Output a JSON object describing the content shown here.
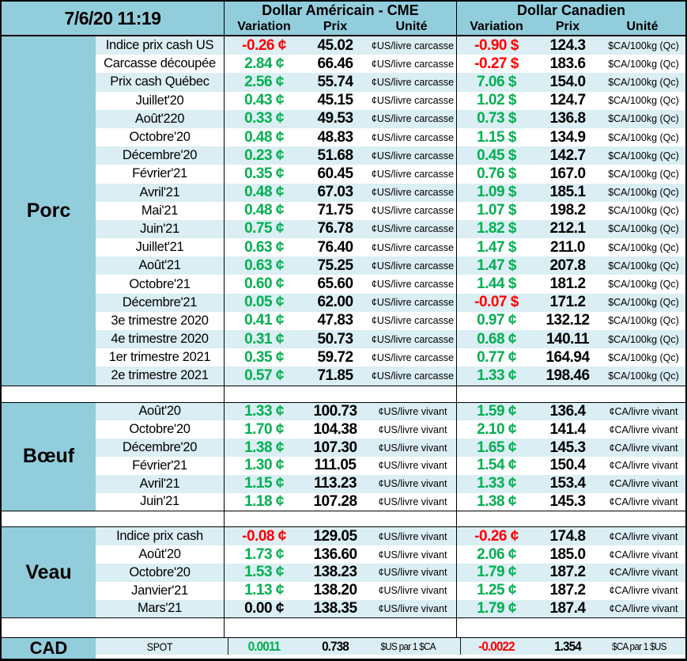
{
  "header": {
    "datetime": "7/6/20 11:19",
    "usd_title": "Dollar Américain - CME",
    "cad_title": "Dollar Canadien",
    "columns": [
      "Variation",
      "Prix",
      "Unité"
    ]
  },
  "colors": {
    "positive_green": "#00B050",
    "negative_red": "#FF0000",
    "header_blue": "#92CDDC",
    "row_alt_blue": "#DAEEF3"
  },
  "sections": [
    {
      "key": "porc",
      "name": "Porc",
      "rows": [
        {
          "label": "Indice prix cash US",
          "us_var": "-0.26 ¢",
          "us_color": "red",
          "us_prix": "45.02",
          "us_unit": "¢US/livre carcasse",
          "ca_var": "-0.90 $",
          "ca_color": "red",
          "ca_prix": "124.3",
          "ca_unit": "$CA/100kg (Qc)"
        },
        {
          "label": "Carcasse découpée",
          "us_var": "2.84 ¢",
          "us_color": "green",
          "us_prix": "66.46",
          "us_unit": "¢US/livre carcasse",
          "ca_var": "-0.27 $",
          "ca_color": "red",
          "ca_prix": "183.6",
          "ca_unit": "$CA/100kg (Qc)"
        },
        {
          "label": "Prix cash Québec",
          "us_var": "2.56 ¢",
          "us_color": "green",
          "us_prix": "55.74",
          "us_unit": "¢US/livre carcasse",
          "ca_var": "7.06 $",
          "ca_color": "green",
          "ca_prix": "154.0",
          "ca_unit": "$CA/100kg (Qc)"
        },
        {
          "label": "Juillet'20",
          "us_var": "0.43 ¢",
          "us_color": "green",
          "us_prix": "45.15",
          "us_unit": "¢US/livre carcasse",
          "ca_var": "1.02 $",
          "ca_color": "green",
          "ca_prix": "124.7",
          "ca_unit": "$CA/100kg (Qc)"
        },
        {
          "label": "Août'220",
          "us_var": "0.33 ¢",
          "us_color": "green",
          "us_prix": "49.53",
          "us_unit": "¢US/livre carcasse",
          "ca_var": "0.73 $",
          "ca_color": "green",
          "ca_prix": "136.8",
          "ca_unit": "$CA/100kg (Qc)"
        },
        {
          "label": "Octobre'20",
          "us_var": "0.48 ¢",
          "us_color": "green",
          "us_prix": "48.83",
          "us_unit": "¢US/livre carcasse",
          "ca_var": "1.15 $",
          "ca_color": "green",
          "ca_prix": "134.9",
          "ca_unit": "$CA/100kg (Qc)"
        },
        {
          "label": "Décembre'20",
          "us_var": "0.23 ¢",
          "us_color": "green",
          "us_prix": "51.68",
          "us_unit": "¢US/livre carcasse",
          "ca_var": "0.45 $",
          "ca_color": "green",
          "ca_prix": "142.7",
          "ca_unit": "$CA/100kg (Qc)"
        },
        {
          "label": "Février'21",
          "us_var": "0.35 ¢",
          "us_color": "green",
          "us_prix": "60.45",
          "us_unit": "¢US/livre carcasse",
          "ca_var": "0.76 $",
          "ca_color": "green",
          "ca_prix": "167.0",
          "ca_unit": "$CA/100kg (Qc)"
        },
        {
          "label": "Avril'21",
          "us_var": "0.48 ¢",
          "us_color": "green",
          "us_prix": "67.03",
          "us_unit": "¢US/livre carcasse",
          "ca_var": "1.09 $",
          "ca_color": "green",
          "ca_prix": "185.1",
          "ca_unit": "$CA/100kg (Qc)"
        },
        {
          "label": "Mai'21",
          "us_var": "0.48 ¢",
          "us_color": "green",
          "us_prix": "71.75",
          "us_unit": "¢US/livre carcasse",
          "ca_var": "1.07 $",
          "ca_color": "green",
          "ca_prix": "198.2",
          "ca_unit": "$CA/100kg (Qc)"
        },
        {
          "label": "Juin'21",
          "us_var": "0.75 ¢",
          "us_color": "green",
          "us_prix": "76.78",
          "us_unit": "¢US/livre carcasse",
          "ca_var": "1.82 $",
          "ca_color": "green",
          "ca_prix": "212.1",
          "ca_unit": "$CA/100kg (Qc)"
        },
        {
          "label": "Juillet'21",
          "us_var": "0.63 ¢",
          "us_color": "green",
          "us_prix": "76.40",
          "us_unit": "¢US/livre carcasse",
          "ca_var": "1.47 $",
          "ca_color": "green",
          "ca_prix": "211.0",
          "ca_unit": "$CA/100kg (Qc)"
        },
        {
          "label": "Août'21",
          "us_var": "0.63 ¢",
          "us_color": "green",
          "us_prix": "75.25",
          "us_unit": "¢US/livre carcasse",
          "ca_var": "1.47 $",
          "ca_color": "green",
          "ca_prix": "207.8",
          "ca_unit": "$CA/100kg (Qc)"
        },
        {
          "label": "Octobre'21",
          "us_var": "0.60 ¢",
          "us_color": "green",
          "us_prix": "65.60",
          "us_unit": "¢US/livre carcasse",
          "ca_var": "1.44 $",
          "ca_color": "green",
          "ca_prix": "181.2",
          "ca_unit": "$CA/100kg (Qc)"
        },
        {
          "label": "Décembre'21",
          "us_var": "0.05 ¢",
          "us_color": "green",
          "us_prix": "62.00",
          "us_unit": "¢US/livre carcasse",
          "ca_var": "-0.07 $",
          "ca_color": "red",
          "ca_prix": "171.2",
          "ca_unit": "$CA/100kg (Qc)"
        },
        {
          "label": "3e trimestre 2020",
          "us_var": "0.41 ¢",
          "us_color": "green",
          "us_prix": "47.83",
          "us_unit": "¢US/livre carcasse",
          "ca_var": "0.97 ¢",
          "ca_color": "green",
          "ca_prix": "132.12",
          "ca_unit": "$CA/100kg (Qc)"
        },
        {
          "label": "4e trimestre 2020",
          "us_var": "0.31 ¢",
          "us_color": "green",
          "us_prix": "50.73",
          "us_unit": "¢US/livre carcasse",
          "ca_var": "0.68 ¢",
          "ca_color": "green",
          "ca_prix": "140.11",
          "ca_unit": "$CA/100kg (Qc)"
        },
        {
          "label": "1er trimestre 2021",
          "us_var": "0.35 ¢",
          "us_color": "green",
          "us_prix": "59.72",
          "us_unit": "¢US/livre carcasse",
          "ca_var": "0.77 ¢",
          "ca_color": "green",
          "ca_prix": "164.94",
          "ca_unit": "$CA/100kg (Qc)"
        },
        {
          "label": "2e trimestre 2021",
          "us_var": "0.57 ¢",
          "us_color": "green",
          "us_prix": "71.85",
          "us_unit": "¢US/livre carcasse",
          "ca_var": "1.33 ¢",
          "ca_color": "green",
          "ca_prix": "198.46",
          "ca_unit": "$CA/100kg (Qc)"
        }
      ]
    },
    {
      "key": "boeuf",
      "name": "Bœuf",
      "rows": [
        {
          "label": "Août'20",
          "us_var": "1.33 ¢",
          "us_color": "green",
          "us_prix": "100.73",
          "us_unit": "¢US/livre vivant",
          "ca_var": "1.59 ¢",
          "ca_color": "green",
          "ca_prix": "136.4",
          "ca_unit": "¢CA/livre vivant"
        },
        {
          "label": "Octobre'20",
          "us_var": "1.70 ¢",
          "us_color": "green",
          "us_prix": "104.38",
          "us_unit": "¢US/livre vivant",
          "ca_var": "2.10 ¢",
          "ca_color": "green",
          "ca_prix": "141.4",
          "ca_unit": "¢CA/livre vivant"
        },
        {
          "label": "Décembre'20",
          "us_var": "1.38 ¢",
          "us_color": "green",
          "us_prix": "107.30",
          "us_unit": "¢US/livre vivant",
          "ca_var": "1.65 ¢",
          "ca_color": "green",
          "ca_prix": "145.3",
          "ca_unit": "¢CA/livre vivant"
        },
        {
          "label": "Février'21",
          "us_var": "1.30 ¢",
          "us_color": "green",
          "us_prix": "111.05",
          "us_unit": "¢US/livre vivant",
          "ca_var": "1.54 ¢",
          "ca_color": "green",
          "ca_prix": "150.4",
          "ca_unit": "¢CA/livre vivant"
        },
        {
          "label": "Avril'21",
          "us_var": "1.15 ¢",
          "us_color": "green",
          "us_prix": "113.23",
          "us_unit": "¢US/livre vivant",
          "ca_var": "1.33 ¢",
          "ca_color": "green",
          "ca_prix": "153.4",
          "ca_unit": "¢CA/livre vivant"
        },
        {
          "label": "Juin'21",
          "us_var": "1.18 ¢",
          "us_color": "green",
          "us_prix": "107.28",
          "us_unit": "¢US/livre vivant",
          "ca_var": "1.38 ¢",
          "ca_color": "green",
          "ca_prix": "145.3",
          "ca_unit": "¢CA/livre vivant"
        }
      ]
    },
    {
      "key": "veau",
      "name": "Veau",
      "rows": [
        {
          "label": "Indice prix cash",
          "us_var": "-0.08 ¢",
          "us_color": "red",
          "us_prix": "129.05",
          "us_unit": "¢US/livre vivant",
          "ca_var": "-0.26 ¢",
          "ca_color": "red",
          "ca_prix": "174.8",
          "ca_unit": "¢CA/livre vivant"
        },
        {
          "label": "Août'20",
          "us_var": "1.73 ¢",
          "us_color": "green",
          "us_prix": "136.60",
          "us_unit": "¢US/livre vivant",
          "ca_var": "2.06 ¢",
          "ca_color": "green",
          "ca_prix": "185.0",
          "ca_unit": "¢CA/livre vivant"
        },
        {
          "label": "Octobre'20",
          "us_var": "1.53 ¢",
          "us_color": "green",
          "us_prix": "138.23",
          "us_unit": "¢US/livre vivant",
          "ca_var": "1.79 ¢",
          "ca_color": "green",
          "ca_prix": "187.2",
          "ca_unit": "¢CA/livre vivant"
        },
        {
          "label": "Janvier'21",
          "us_var": "1.13 ¢",
          "us_color": "green",
          "us_prix": "138.20",
          "us_unit": "¢US/livre vivant",
          "ca_var": "1.25 ¢",
          "ca_color": "green",
          "ca_prix": "187.2",
          "ca_unit": "¢CA/livre vivant"
        },
        {
          "label": "Mars'21",
          "us_var": "0.00 ¢",
          "us_color": "black",
          "us_prix": "138.35",
          "us_unit": "¢US/livre vivant",
          "ca_var": "1.79 ¢",
          "ca_color": "green",
          "ca_prix": "187.4",
          "ca_unit": "¢CA/livre vivant"
        }
      ]
    },
    {
      "key": "cad",
      "name": "CAD",
      "rows": [
        {
          "label": "SPOT",
          "us_var": "0.0011",
          "us_color": "green",
          "us_prix": "0.738",
          "us_unit": "$US par 1 $CA",
          "ca_var": "-0.0022",
          "ca_color": "red",
          "ca_prix": "1.354",
          "ca_unit": "$CA par 1 $US"
        }
      ]
    }
  ]
}
